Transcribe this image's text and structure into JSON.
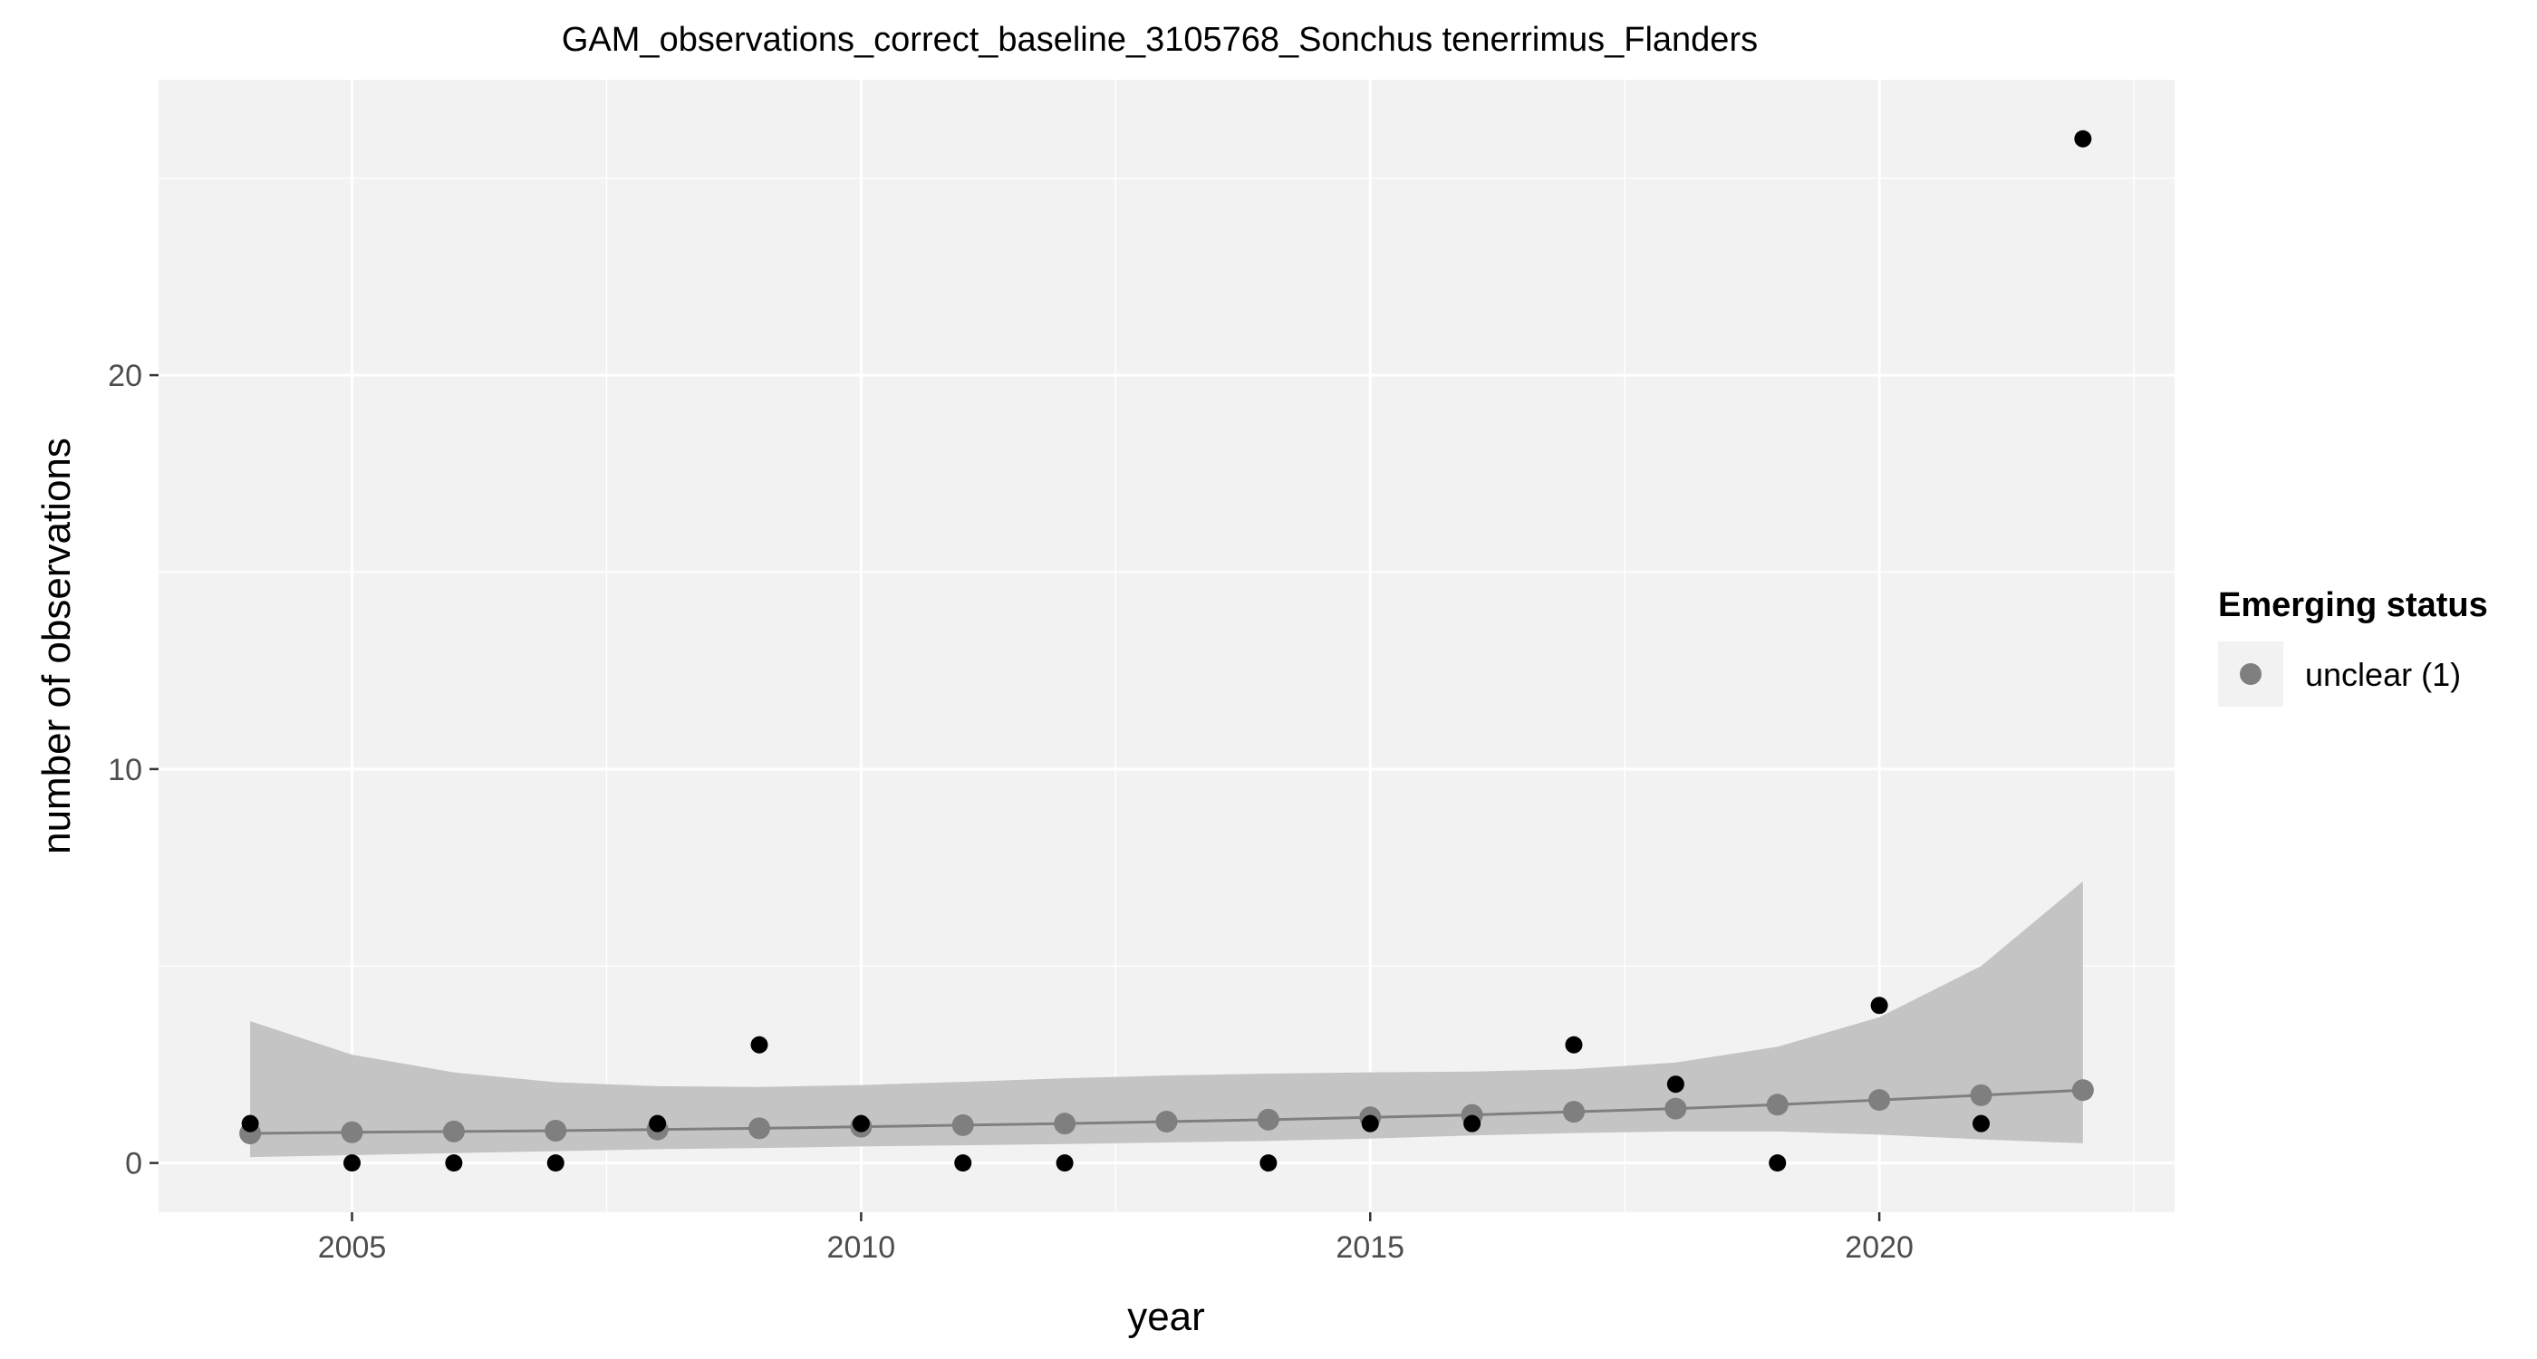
{
  "chart_data": {
    "type": "scatter",
    "title": "GAM_observations_correct_baseline_3105768_Sonchus tenerrimus_Flanders",
    "xlabel": "year",
    "ylabel": "number of observations",
    "xlim": [
      2003.1,
      2022.9
    ],
    "ylim": [
      -1.25,
      27.5
    ],
    "x_ticks": [
      2005,
      2010,
      2015,
      2020
    ],
    "y_ticks": [
      0,
      10,
      20
    ],
    "grid": true,
    "legend": {
      "title": "Emerging status",
      "position": "right",
      "entries": [
        {
          "label": "unclear (1)",
          "color": "#7f7f7f"
        }
      ]
    },
    "series": [
      {
        "kind": "observations",
        "color": "#000000",
        "x": [
          2004,
          2005,
          2006,
          2007,
          2008,
          2009,
          2010,
          2011,
          2012,
          2014,
          2015,
          2016,
          2017,
          2018,
          2019,
          2020,
          2021,
          2022
        ],
        "y": [
          1,
          0,
          0,
          0,
          1,
          3,
          1,
          0,
          0,
          0,
          1,
          1,
          3,
          2,
          0,
          4,
          1,
          26
        ]
      },
      {
        "kind": "gam_fit",
        "name": "unclear (1)",
        "color": "#7f7f7f",
        "x": [
          2004,
          2005,
          2006,
          2007,
          2008,
          2009,
          2010,
          2011,
          2012,
          2013,
          2014,
          2015,
          2016,
          2017,
          2018,
          2019,
          2020,
          2021,
          2022
        ],
        "y": [
          0.75,
          0.78,
          0.8,
          0.82,
          0.85,
          0.88,
          0.92,
          0.96,
          1.0,
          1.05,
          1.1,
          1.16,
          1.22,
          1.3,
          1.38,
          1.48,
          1.6,
          1.72,
          1.85
        ],
        "lower": [
          0.15,
          0.2,
          0.25,
          0.3,
          0.35,
          0.38,
          0.42,
          0.45,
          0.48,
          0.52,
          0.56,
          0.62,
          0.7,
          0.76,
          0.8,
          0.8,
          0.72,
          0.6,
          0.5
        ],
        "upper": [
          3.6,
          2.75,
          2.3,
          2.05,
          1.95,
          1.93,
          1.98,
          2.06,
          2.15,
          2.22,
          2.27,
          2.3,
          2.32,
          2.38,
          2.55,
          2.95,
          3.7,
          5.0,
          7.15
        ]
      }
    ]
  },
  "colors": {
    "panel": "#f2f2f2",
    "grid_major": "#ffffff",
    "ribbon": "#c4c4c4",
    "fit_line": "#7f7f7f",
    "fit_point": "#7f7f7f",
    "obs_point": "#000000",
    "legend_key_bg": "#f2f2f2"
  }
}
